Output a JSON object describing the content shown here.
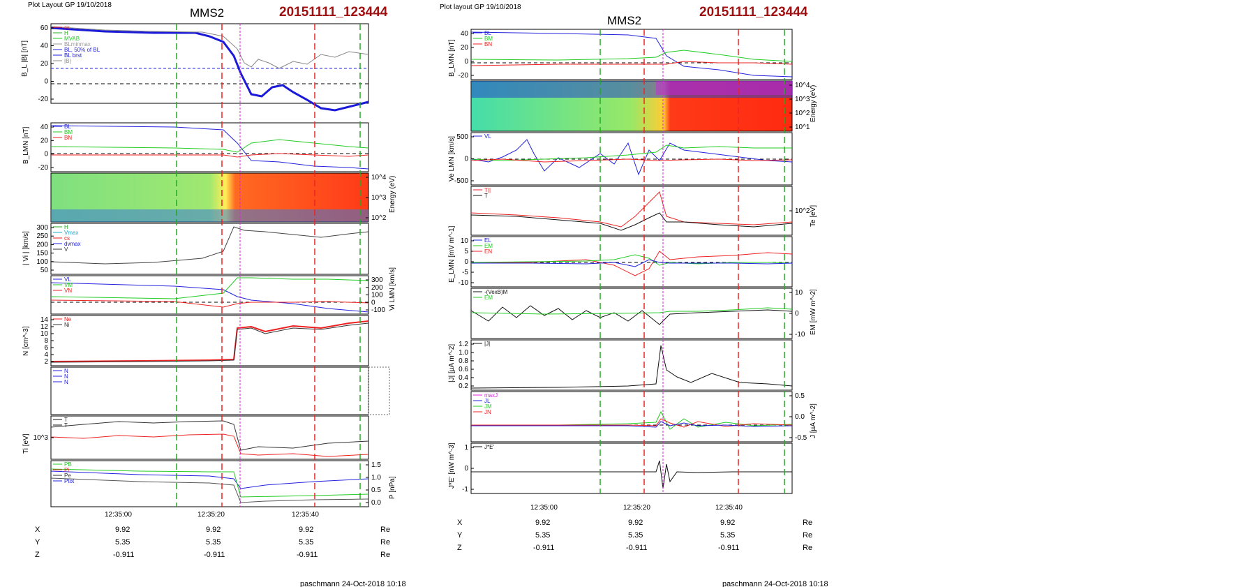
{
  "header": {
    "layout_label_left": "Plot Layout GP 19/10/2018",
    "layout_label_right": "Plot layout GP 19/10/2018",
    "spacecraft": "MMS2",
    "event_id": "20151111_123444",
    "event_color": "#a01010",
    "footer_left": "paschmann 24-Oct-2018 10:18",
    "footer_right": "paschmann 24-Oct-2018 10:18"
  },
  "time_axis": {
    "tick_labels": [
      "12:35:00",
      "12:35:20",
      "12:35:40"
    ]
  },
  "ephemeris": {
    "rows": [
      {
        "label": "X",
        "values": [
          "9.92",
          "9.92",
          "9.92"
        ],
        "unit": "Re"
      },
      {
        "label": "Y",
        "values": [
          "5.35",
          "5.35",
          "5.35"
        ],
        "unit": "Re"
      },
      {
        "label": "Z",
        "values": [
          "-0.911",
          "-0.911",
          "-0.911"
        ],
        "unit": "Re"
      }
    ]
  },
  "colors": {
    "marker_green": "#22aa22",
    "marker_red": "#ee2222",
    "marker_magenta": "#dd22dd",
    "blue": "#2222dd",
    "green": "#22cc22",
    "red": "#ee2222",
    "gray": "#888888",
    "black": "#111111"
  },
  "chart_data": [
    {
      "id": "left-bl",
      "type": "line",
      "ylabel": "B_L |B| [nT]",
      "yticks": [
        "60",
        "40",
        "20",
        "0",
        "-20"
      ],
      "legend": [
        "cs",
        "H",
        "MVAB",
        "BLminmax",
        "BL, 50% of BL",
        "BL brst",
        "|B|"
      ],
      "series": [
        {
          "name": "BL brst",
          "color": "#1a1ad8",
          "values": [
            53,
            52,
            51,
            51,
            51,
            50,
            45,
            20,
            -8,
            -15,
            -8,
            -6,
            -14,
            -22,
            -25,
            -24,
            -22
          ]
        },
        {
          "name": "|B|",
          "color": "#888888",
          "values": [
            54,
            53,
            52,
            52,
            52,
            51,
            50,
            42,
            20,
            25,
            18,
            12,
            24,
            28,
            26,
            30,
            30
          ]
        }
      ]
    },
    {
      "id": "left-blmn",
      "type": "line",
      "ylabel": "B_LMN [nT]",
      "yticks": [
        "40",
        "20",
        "0",
        "-20"
      ],
      "legend": [
        "BL",
        "BM",
        "BN"
      ]
    },
    {
      "id": "left-energy",
      "type": "heatmap",
      "ylabel": "Energy (eV)",
      "yticks": [
        "10^4",
        "10^3",
        "10^2"
      ]
    },
    {
      "id": "left-vi",
      "type": "line",
      "ylabel": "| Vi | [km/s]",
      "yticks": [
        "300",
        "250",
        "200",
        "150",
        "100",
        "50"
      ],
      "legend": [
        "H",
        "Vmax",
        "cs",
        "dvmax",
        "V"
      ]
    },
    {
      "id": "left-vilmn",
      "type": "line",
      "ylabel": "Vi LMN [km/s]",
      "yticks": [
        "300",
        "200",
        "100",
        "0",
        "-100"
      ],
      "legend": [
        "VL",
        "VM",
        "VN"
      ]
    },
    {
      "id": "left-n",
      "type": "line",
      "ylabel": "N [cm^-3]",
      "yticks": [
        "14",
        "12",
        "10",
        "8",
        "6",
        "4",
        "2"
      ],
      "legend": [
        "Ne",
        "Ni"
      ]
    },
    {
      "id": "left-dens2",
      "type": "line",
      "ylabel": "N [cm^-3]",
      "legend": [
        "N",
        "N",
        "N"
      ]
    },
    {
      "id": "left-ti",
      "type": "line",
      "ylabel": "Ti [eV]",
      "yticks": [
        "10^3"
      ],
      "legend": [
        "T",
        "T"
      ]
    },
    {
      "id": "left-p",
      "type": "line",
      "ylabel": "P [nPa]",
      "yticks": [
        "1.5",
        "1.0",
        "0.5",
        "0.0"
      ],
      "legend": [
        "PB",
        "Pi",
        "Pe",
        "Ptot"
      ]
    },
    {
      "id": "right-blmn",
      "type": "line",
      "ylabel": "B_LMN [nT]",
      "yticks": [
        "40",
        "20",
        "0",
        "-20"
      ],
      "legend": [
        "BL",
        "BM",
        "BN"
      ]
    },
    {
      "id": "right-energy",
      "type": "heatmap",
      "ylabel": "Energy (eV)",
      "yticks": [
        "10^4",
        "10^3",
        "10^2",
        "10^1"
      ]
    },
    {
      "id": "right-ve",
      "type": "line",
      "ylabel": "Ve LMN [km/s]",
      "yticks": [
        "500",
        "0",
        "-500"
      ],
      "legend": [
        "VL"
      ]
    },
    {
      "id": "right-te",
      "type": "line",
      "ylabel": "Te [eV]",
      "yticks": [
        "10^2"
      ],
      "legend": [
        "T||",
        "T"
      ]
    },
    {
      "id": "right-elmn",
      "type": "line",
      "ylabel": "E_LMN [mV m^-1]",
      "yticks": [
        "10",
        "5",
        "0",
        "-5",
        "-10"
      ],
      "legend": [
        "EL",
        "EM",
        "EN"
      ]
    },
    {
      "id": "right-em",
      "type": "line",
      "ylabel": "EM [mW m^-2]",
      "yticks": [
        "10",
        "0",
        "-10"
      ],
      "legend": [
        "-(VexB)M",
        "EM"
      ]
    },
    {
      "id": "right-j",
      "type": "line",
      "ylabel": "|J| [µA m^-2]",
      "yticks": [
        "1.2",
        "1.0",
        "0.8",
        "0.6",
        "0.4",
        "0.2"
      ],
      "legend": [
        "|J|"
      ]
    },
    {
      "id": "right-jlmn",
      "type": "line",
      "ylabel": "J [µA m^-2]",
      "yticks": [
        "0.5",
        "0.0",
        "-0.5"
      ],
      "legend": [
        "maxJ",
        "JL",
        "JM",
        "JN"
      ]
    },
    {
      "id": "right-jdote",
      "type": "line",
      "ylabel": "J*E' [nW m^-3]",
      "yticks": [
        "1",
        "0",
        "-1"
      ],
      "legend": [
        "J*E'"
      ]
    }
  ]
}
